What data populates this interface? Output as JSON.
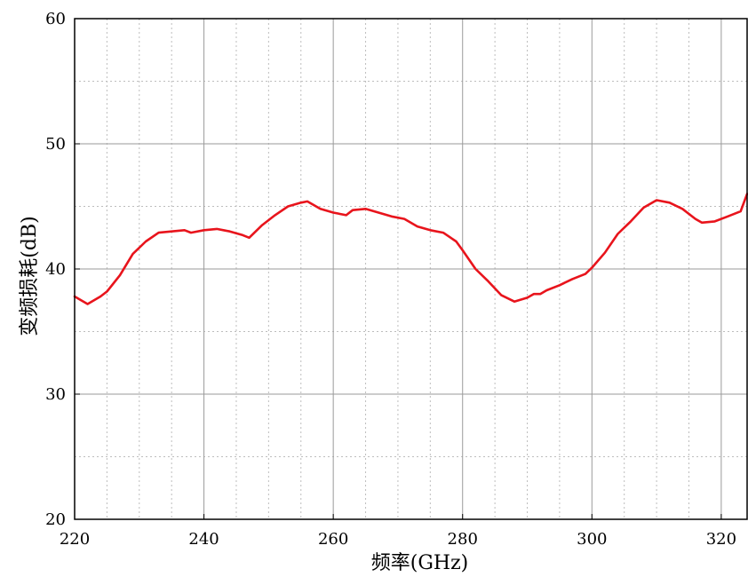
{
  "chart_data": {
    "type": "line",
    "title": "",
    "xlabel": "频率(GHz)",
    "ylabel": "变频损耗(dB)",
    "xlim": [
      220,
      324
    ],
    "ylim": [
      20,
      60
    ],
    "x_ticks": [
      220,
      240,
      260,
      280,
      300,
      320
    ],
    "y_ticks": [
      20,
      30,
      40,
      50,
      60
    ],
    "x_tick_labels": [
      "220",
      "240",
      "260",
      "280",
      "300",
      "320"
    ],
    "y_tick_labels": [
      "20",
      "30",
      "40",
      "50",
      "60"
    ],
    "x_minor_step": 5,
    "y_minor_step": 5,
    "grid": true,
    "legend": "none",
    "series": [
      {
        "color": "#e8141c",
        "x": [
          220,
          222,
          224,
          225,
          227,
          229,
          231,
          233,
          235,
          237,
          238,
          240,
          242,
          244,
          246,
          247,
          249,
          251,
          253,
          255,
          256,
          258,
          260,
          262,
          263,
          265,
          267,
          269,
          271,
          273,
          275,
          277,
          279,
          280,
          282,
          284,
          286,
          288,
          290,
          291,
          292,
          293,
          295,
          297,
          299,
          300,
          302,
          304,
          306,
          308,
          310,
          312,
          314,
          316,
          317,
          319,
          321,
          323,
          324
        ],
        "y": [
          37.8,
          37.2,
          37.8,
          38.2,
          39.5,
          41.2,
          42.2,
          42.9,
          43.0,
          43.1,
          42.9,
          43.1,
          43.2,
          43.0,
          42.7,
          42.5,
          43.5,
          44.3,
          45.0,
          45.3,
          45.4,
          44.8,
          44.5,
          44.3,
          44.7,
          44.8,
          44.5,
          44.2,
          44.0,
          43.4,
          43.1,
          42.9,
          42.2,
          41.5,
          40.0,
          39.0,
          37.9,
          37.4,
          37.7,
          38.0,
          38.0,
          38.3,
          38.7,
          39.2,
          39.6,
          40.1,
          41.3,
          42.8,
          43.8,
          44.9,
          45.5,
          45.3,
          44.8,
          44.0,
          43.7,
          43.8,
          44.2,
          44.6,
          46.0
        ]
      }
    ]
  }
}
